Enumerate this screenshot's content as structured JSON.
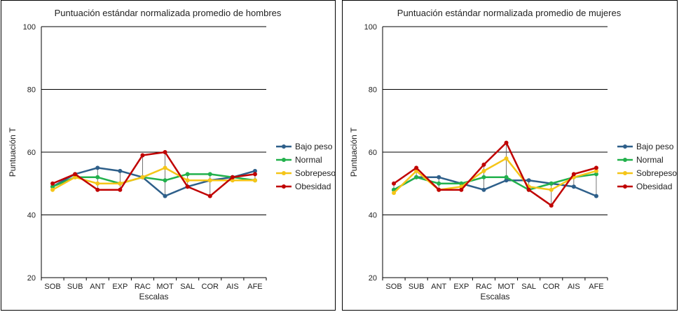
{
  "chart_data": [
    {
      "type": "line",
      "title": "Puntuación estándar normalizada promedio de hombres",
      "xlabel": "Escalas",
      "ylabel": "Puntuación T",
      "ylim": [
        20,
        100
      ],
      "yticks": [
        "20",
        "40",
        "60",
        "80",
        "100"
      ],
      "categories": [
        "SOB",
        "SUB",
        "ANT",
        "EXP",
        "RAC",
        "MOT",
        "SAL",
        "COR",
        "AIS",
        "AFE"
      ],
      "grid": "horizontal",
      "legend_position": "right",
      "series": [
        {
          "name": "Bajo peso",
          "color": "#2e5f8a",
          "values": [
            49,
            53,
            55,
            54,
            52,
            46,
            49,
            51,
            52,
            54
          ]
        },
        {
          "name": "Normal",
          "color": "#22b14c",
          "values": [
            49,
            52,
            52,
            50,
            52,
            51,
            53,
            53,
            52,
            51
          ]
        },
        {
          "name": "Sobrepeso",
          "color": "#f5c518",
          "values": [
            48,
            52,
            50,
            50,
            52,
            55,
            51,
            51,
            51,
            51
          ]
        },
        {
          "name": "Obesidad",
          "color": "#c00000",
          "values": [
            50,
            53,
            48,
            48,
            59,
            60,
            49,
            46,
            52,
            53
          ]
        }
      ]
    },
    {
      "type": "line",
      "title": "Puntuación estándar normalizada promedio de mujeres",
      "xlabel": "Escalas",
      "ylabel": "Puntuación T",
      "ylim": [
        20,
        100
      ],
      "yticks": [
        "20",
        "40",
        "60",
        "80",
        "100"
      ],
      "categories": [
        "SOB",
        "SUB",
        "ANT",
        "EXP",
        "RAC",
        "MOT",
        "SAL",
        "COR",
        "AIS",
        "AFE"
      ],
      "grid": "horizontal",
      "legend_position": "right",
      "series": [
        {
          "name": "Bajo peso",
          "color": "#2e5f8a",
          "values": [
            48,
            52,
            52,
            50,
            48,
            51,
            51,
            50,
            49,
            46
          ]
        },
        {
          "name": "Normal",
          "color": "#22b14c",
          "values": [
            48,
            52,
            50,
            50,
            52,
            52,
            48,
            50,
            52,
            53
          ]
        },
        {
          "name": "Sobrepeso",
          "color": "#f5c518",
          "values": [
            47,
            54,
            48,
            49,
            54,
            58,
            49,
            48,
            52,
            54
          ]
        },
        {
          "name": "Obesidad",
          "color": "#c00000",
          "values": [
            50,
            55,
            48,
            48,
            56,
            63,
            48,
            43,
            53,
            55
          ]
        }
      ]
    }
  ]
}
